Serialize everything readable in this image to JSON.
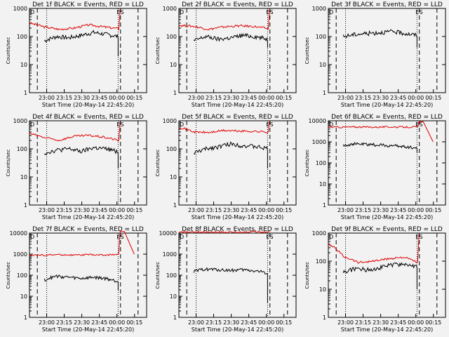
{
  "chart_data": {
    "type": "line",
    "xlabel": "Start Time (20-May-14 22:45:20)",
    "ylabel": "Counts/sec",
    "x_ticks": [
      "23:00",
      "23:15",
      "23:30",
      "23:45",
      "00:00",
      "00:15"
    ],
    "x_range": [
      "22:45:20",
      "00:25"
    ],
    "y_scale": "log",
    "legend": {
      "black": "Events",
      "red": "LLD"
    },
    "colors": {
      "events": "#000000",
      "lld": "#e00000",
      "background": "#f2f2f2"
    },
    "markers": {
      "dashed_left": "22:52",
      "dotted_left": "23:00",
      "dotted_right": "00:01",
      "dashed_mid": "00:03",
      "dashed_right": "00:18",
      "box_labels": [
        "D",
        "ES"
      ]
    },
    "panels": [
      {
        "title": "Det 1f BLACK = Events, RED = LLD",
        "yticks": [
          "1",
          "10",
          "100",
          "1000"
        ],
        "ylim": [
          1,
          1000
        ],
        "events": {
          "start": 60,
          "end": 150,
          "level": [
            70,
            100,
            90,
            110,
            140,
            120,
            100
          ],
          "dip": 20
        },
        "lld": {
          "start": 22,
          "end": 175,
          "level": [
            300,
            220,
            180,
            200,
            260,
            220,
            190
          ],
          "spike": 900
        }
      },
      {
        "title": "Det 2f BLACK = Events, RED = LLD",
        "yticks": [
          "1",
          "10",
          "100",
          "1000"
        ],
        "ylim": [
          1,
          1000
        ],
        "events": {
          "start": 60,
          "end": 150,
          "level": [
            70,
            100,
            80,
            90,
            110,
            100,
            80
          ],
          "dip": 40
        },
        "lld": {
          "start": 22,
          "end": 175,
          "level": [
            250,
            230,
            180,
            220,
            240,
            230,
            190
          ],
          "spike": 900
        }
      },
      {
        "title": "Det 3f BLACK = Events, RED = LLD",
        "yticks": [
          "1",
          "10",
          "100",
          "1000"
        ],
        "ylim": [
          1,
          1000
        ],
        "events": {
          "start": 60,
          "end": 150,
          "level": [
            100,
            120,
            130,
            140,
            150,
            130,
            110
          ],
          "dip": 40
        },
        "lld": null
      },
      {
        "title": "Det 4f BLACK = Events, RED = LLD",
        "yticks": [
          "1",
          "10",
          "100",
          "1000"
        ],
        "ylim": [
          1,
          1000
        ],
        "events": {
          "start": 60,
          "end": 150,
          "level": [
            70,
            90,
            100,
            80,
            110,
            100,
            80
          ],
          "dip": 20
        },
        "lld": {
          "start": 22,
          "end": 175,
          "level": [
            350,
            250,
            200,
            280,
            300,
            260,
            200
          ],
          "spike": 900
        }
      },
      {
        "title": "Det 5f BLACK = Events, RED = LLD",
        "yticks": [
          "1",
          "10",
          "100",
          "1000"
        ],
        "ylim": [
          1,
          1000
        ],
        "events": {
          "start": 60,
          "end": 150,
          "level": [
            70,
            100,
            120,
            150,
            130,
            120,
            100
          ],
          "dip": 20
        },
        "lld": {
          "start": 22,
          "end": 175,
          "level": [
            600,
            400,
            380,
            450,
            430,
            420,
            400
          ],
          "spike": 1000
        }
      },
      {
        "title": "Det 6f BLACK = Events, RED = LLD",
        "yticks": [
          "1",
          "10",
          "100",
          "1000",
          "10000"
        ],
        "ylim": [
          1,
          10000
        ],
        "events": {
          "start": 60,
          "end": 150,
          "level": [
            700,
            800,
            750,
            700,
            650,
            600,
            500
          ],
          "dip": 300
        },
        "lld": {
          "start": 22,
          "end": 175,
          "level": [
            5000,
            5000,
            5100,
            5000,
            5100,
            5000,
            5100
          ],
          "spike": 9000
        }
      },
      {
        "title": "Det 7f BLACK = Events, RED = LLD",
        "yticks": [
          "1",
          "10",
          "100",
          "1000",
          "10000"
        ],
        "ylim": [
          1,
          10000
        ],
        "events": {
          "start": 60,
          "end": 150,
          "level": [
            60,
            90,
            80,
            70,
            80,
            70,
            50
          ],
          "dip": 20
        },
        "lld": {
          "start": 22,
          "end": 175,
          "level": [
            900,
            900,
            950,
            900,
            950,
            900,
            1000
          ],
          "spike": 12000
        }
      },
      {
        "title": "Det 8f BLACK = Events, RED = LLD",
        "yticks": [
          "1",
          "10",
          "100",
          "1000",
          "10000"
        ],
        "ylim": [
          1,
          10000
        ],
        "events": {
          "start": 60,
          "end": 150,
          "level": [
            150,
            200,
            180,
            170,
            180,
            160,
            130
          ],
          "dip": 5
        },
        "lld": {
          "start": 22,
          "end": 175,
          "level": [
            11000,
            11000,
            11500,
            11000,
            11000,
            11500,
            11000
          ],
          "spike": 12000
        }
      },
      {
        "title": "Det 9f BLACK = Events, RED = LLD",
        "yticks": [
          "1",
          "10",
          "100",
          "1000"
        ],
        "ylim": [
          1,
          1000
        ],
        "events": {
          "start": 60,
          "end": 150,
          "level": [
            40,
            55,
            50,
            60,
            75,
            80,
            60
          ],
          "dip": 10
        },
        "lld": {
          "start": 22,
          "end": 175,
          "level": [
            400,
            150,
            90,
            100,
            120,
            140,
            90
          ],
          "spike": 900
        }
      }
    ]
  }
}
